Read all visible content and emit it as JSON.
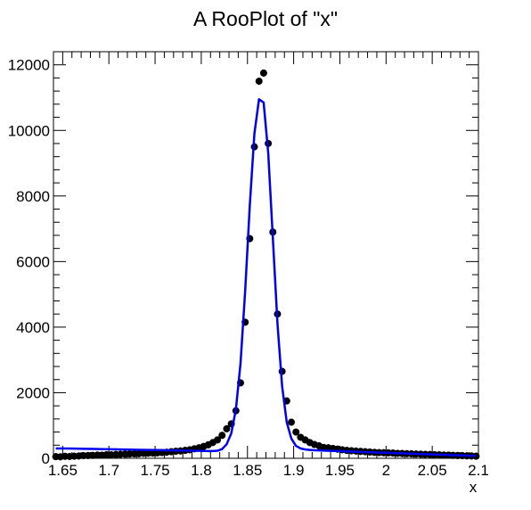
{
  "chart_data": {
    "type": "scatter",
    "title": "A RooPlot of \"x\"",
    "xlabel": "x",
    "ylabel": "",
    "xlim": [
      1.64,
      2.1
    ],
    "ylim": [
      0,
      12400
    ],
    "x_ticks": [
      1.65,
      1.7,
      1.75,
      1.8,
      1.85,
      1.9,
      1.95,
      2.0,
      2.05,
      2.1
    ],
    "x_tick_labels": [
      "1.65",
      "1.7",
      "1.75",
      "1.8",
      "1.85",
      "1.9",
      "1.95",
      "2",
      "2.05",
      "2.1"
    ],
    "y_ticks": [
      0,
      2000,
      4000,
      6000,
      8000,
      10000,
      12000
    ],
    "y_tick_labels": [
      "0",
      "2000",
      "4000",
      "6000",
      "8000",
      "10000",
      "12000"
    ],
    "grid": false,
    "legend": "none",
    "series": [
      {
        "kind": "points",
        "color": "#000000",
        "x": [
          1.6425,
          1.6475,
          1.6525,
          1.6575,
          1.6625,
          1.6675,
          1.6725,
          1.6775,
          1.6825,
          1.6875,
          1.6925,
          1.6975,
          1.7025,
          1.7075,
          1.7125,
          1.7175,
          1.7225,
          1.7275,
          1.7325,
          1.7375,
          1.7425,
          1.7475,
          1.7525,
          1.7575,
          1.7625,
          1.7675,
          1.7725,
          1.7775,
          1.7825,
          1.7875,
          1.7925,
          1.7975,
          1.8025,
          1.8075,
          1.8125,
          1.8175,
          1.8225,
          1.8275,
          1.8325,
          1.8375,
          1.8425,
          1.8475,
          1.8525,
          1.8575,
          1.8625,
          1.8675,
          1.8725,
          1.8775,
          1.8825,
          1.8875,
          1.8925,
          1.8975,
          1.9025,
          1.9075,
          1.9125,
          1.9175,
          1.9225,
          1.9275,
          1.9325,
          1.9375,
          1.9425,
          1.9475,
          1.9525,
          1.9575,
          1.9625,
          1.9675,
          1.9725,
          1.9775,
          1.9825,
          1.9875,
          1.9925,
          1.9975,
          2.0025,
          2.0075,
          2.0125,
          2.0175,
          2.0225,
          2.0275,
          2.0325,
          2.0375,
          2.0425,
          2.0475,
          2.0525,
          2.0575,
          2.0625,
          2.0675,
          2.0725,
          2.0775,
          2.0825,
          2.0875,
          2.0925,
          2.0975
        ],
        "y": [
          50,
          45,
          60,
          55,
          65,
          70,
          80,
          85,
          90,
          100,
          95,
          110,
          105,
          115,
          120,
          125,
          130,
          135,
          140,
          150,
          155,
          160,
          165,
          175,
          185,
          200,
          215,
          225,
          240,
          260,
          290,
          320,
          360,
          410,
          480,
          560,
          700,
          900,
          1050,
          1450,
          2300,
          4150,
          6700,
          9500,
          11500,
          11750,
          9600,
          6900,
          4400,
          2650,
          1750,
          1100,
          800,
          640,
          560,
          480,
          420,
          380,
          330,
          320,
          300,
          280,
          260,
          240,
          230,
          220,
          210,
          200,
          190,
          180,
          175,
          170,
          165,
          160,
          150,
          145,
          140,
          135,
          130,
          125,
          120,
          115,
          110,
          105,
          100,
          95,
          90,
          85,
          80,
          75,
          70,
          65
        ]
      },
      {
        "kind": "line",
        "color": "#0000ee",
        "x": [
          1.6425,
          1.6525,
          1.6625,
          1.6725,
          1.6825,
          1.6925,
          1.7025,
          1.7125,
          1.7225,
          1.7325,
          1.7425,
          1.7525,
          1.7625,
          1.7725,
          1.7825,
          1.7925,
          1.8025,
          1.8075,
          1.8125,
          1.8175,
          1.8225,
          1.8275,
          1.8325,
          1.8375,
          1.8425,
          1.8475,
          1.8525,
          1.8575,
          1.8625,
          1.8675,
          1.8725,
          1.8775,
          1.8825,
          1.8875,
          1.8925,
          1.8975,
          1.9025,
          1.9075,
          1.9125,
          1.9175,
          1.9225,
          1.9275,
          1.9325,
          1.9425,
          1.9525,
          1.9625,
          1.9725,
          1.9825,
          1.9925,
          2.0025,
          2.0125,
          2.0225,
          2.0325,
          2.0425,
          2.0525,
          2.0625,
          2.0725,
          2.0825,
          2.0925,
          2.0975
        ],
        "y": [
          300,
          300,
          295,
          290,
          285,
          280,
          275,
          270,
          265,
          260,
          255,
          250,
          245,
          240,
          235,
          230,
          225,
          220,
          220,
          230,
          280,
          430,
          760,
          1500,
          2900,
          5100,
          7700,
          9900,
          10950,
          10850,
          9300,
          6700,
          4100,
          2200,
          1100,
          600,
          380,
          300,
          270,
          255,
          245,
          240,
          235,
          225,
          215,
          205,
          195,
          185,
          175,
          165,
          155,
          145,
          135,
          125,
          115,
          105,
          95,
          85,
          78,
          75
        ]
      }
    ]
  }
}
